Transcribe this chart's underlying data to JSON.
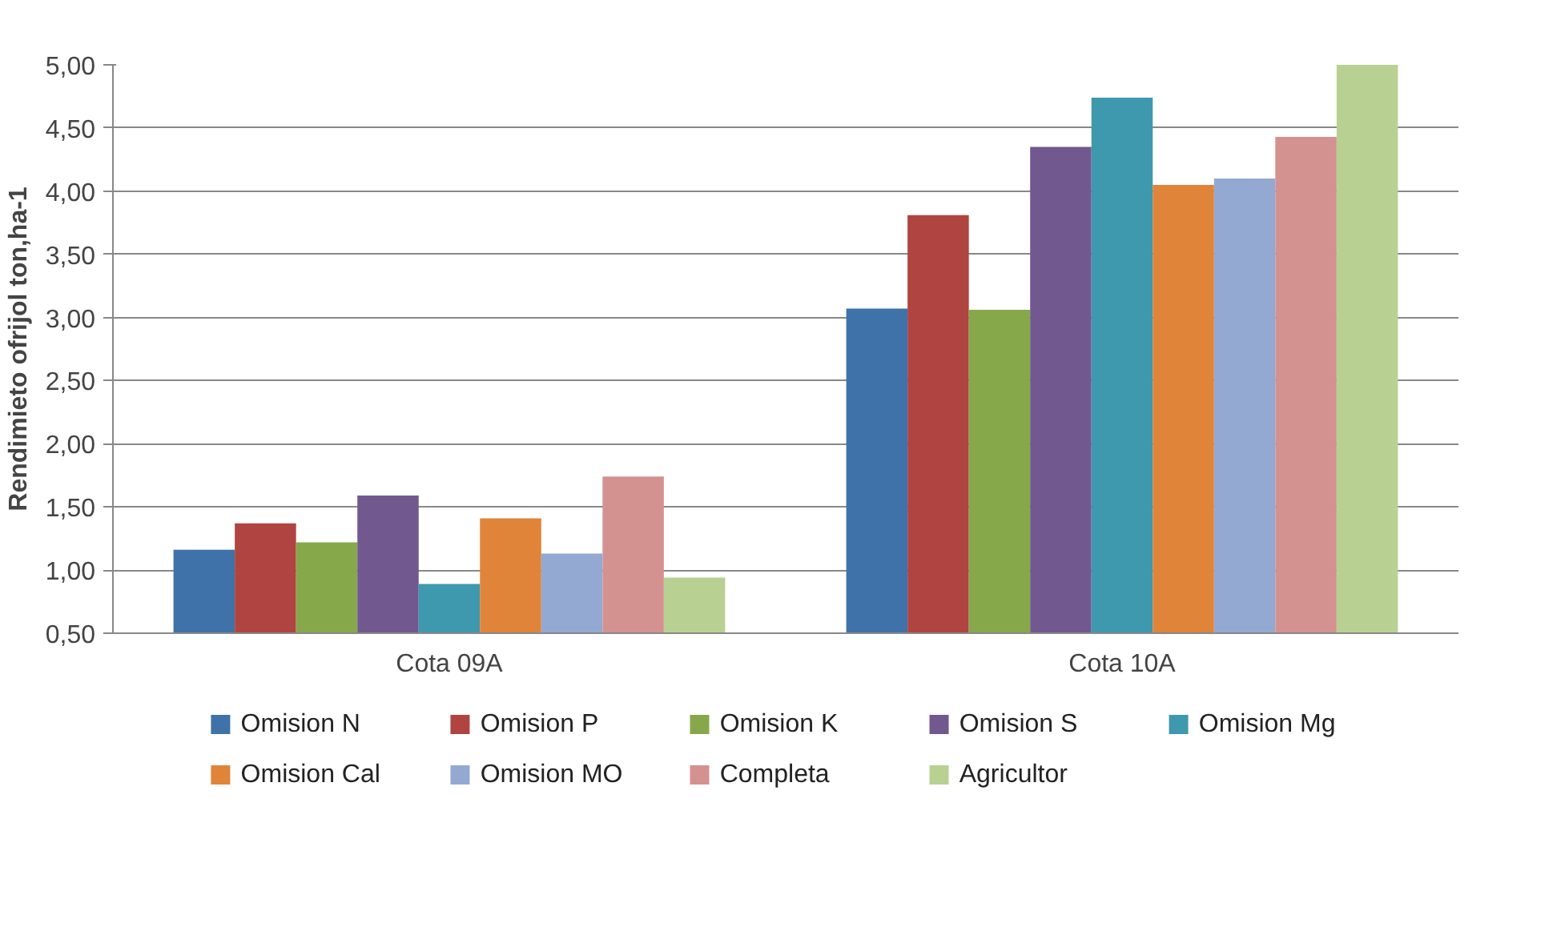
{
  "chart_data": {
    "type": "bar",
    "ylabel": "Rendimieto ofrijol ton,ha-1",
    "categories": [
      "Cota 09A",
      "Cota 10A"
    ],
    "series": [
      {
        "name": "Omision N",
        "color": "#3f72a8",
        "values": [
          1.16,
          3.07
        ]
      },
      {
        "name": "Omision P",
        "color": "#b04440",
        "values": [
          1.37,
          3.81
        ]
      },
      {
        "name": "Omision K",
        "color": "#86a84a",
        "values": [
          1.22,
          3.06
        ]
      },
      {
        "name": "Omision S",
        "color": "#71588f",
        "values": [
          1.59,
          4.35
        ]
      },
      {
        "name": "Omision Mg",
        "color": "#3e98ae",
        "values": [
          0.89,
          4.74
        ]
      },
      {
        "name": "Omision Cal",
        "color": "#e0843a",
        "values": [
          1.41,
          4.05
        ]
      },
      {
        "name": "Omision MO",
        "color": "#93a9d2",
        "values": [
          1.13,
          4.1
        ]
      },
      {
        "name": "Completa",
        "color": "#d39290",
        "values": [
          1.74,
          4.43
        ]
      },
      {
        "name": "Agricultor",
        "color": "#b8d192",
        "values": [
          0.94,
          5.0
        ]
      }
    ],
    "ylim": [
      0.5,
      5.0
    ],
    "yticks": [
      {
        "value": 0.5,
        "label": "0,50"
      },
      {
        "value": 1.0,
        "label": "1,00"
      },
      {
        "value": 1.5,
        "label": "1,50"
      },
      {
        "value": 2.0,
        "label": "2,00"
      },
      {
        "value": 2.5,
        "label": "2,50"
      },
      {
        "value": 3.0,
        "label": "3,00"
      },
      {
        "value": 3.5,
        "label": "3,50"
      },
      {
        "value": 4.0,
        "label": "4,00"
      },
      {
        "value": 4.5,
        "label": "4,50"
      },
      {
        "value": 5.0,
        "label": "5,00"
      }
    ],
    "grid": "y",
    "legend": "bottom"
  }
}
